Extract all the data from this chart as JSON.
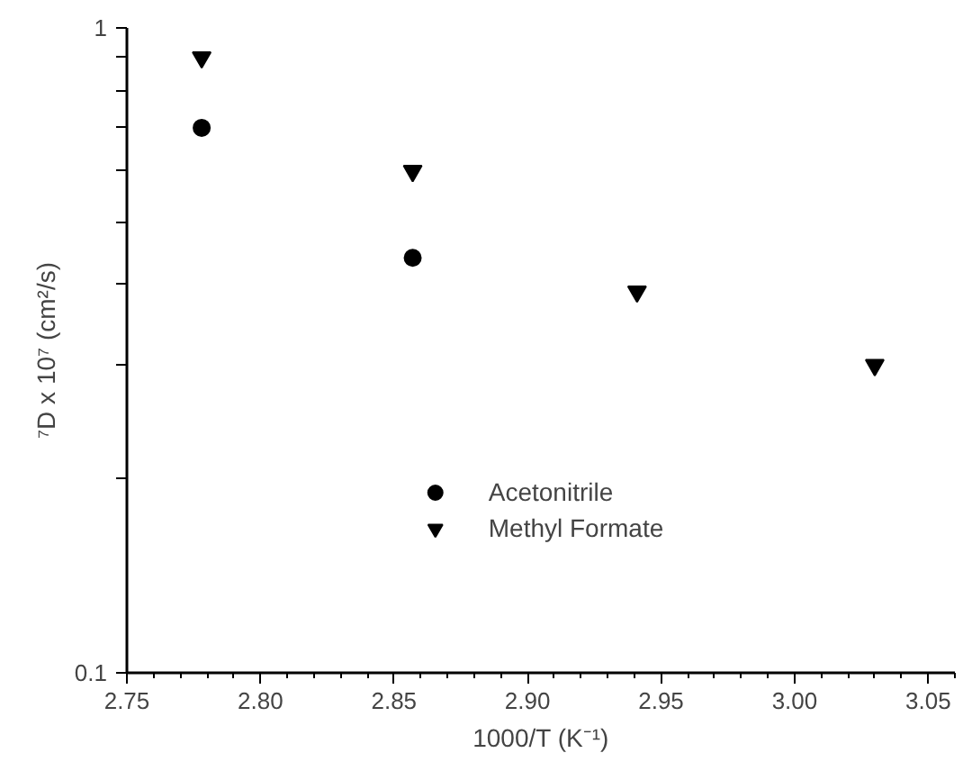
{
  "chart_data": {
    "type": "scatter",
    "xlabel": "1000/T (K⁻¹)",
    "ylabel": "⁷D x 10⁷ (cm²/s)",
    "xlim": [
      2.75,
      3.06
    ],
    "xticks": [
      {
        "value": 2.75,
        "label": "2.75"
      },
      {
        "value": 2.8,
        "label": "2.80"
      },
      {
        "value": 2.85,
        "label": "2.85"
      },
      {
        "value": 2.9,
        "label": "2.90"
      },
      {
        "value": 2.95,
        "label": "2.95"
      },
      {
        "value": 3.0,
        "label": "3.00"
      },
      {
        "value": 3.05,
        "label": "3.05"
      }
    ],
    "ylim": [
      0.1,
      1
    ],
    "yticks": [
      0.1,
      {
        "value": 0.2,
        "label": null
      },
      {
        "value": 0.3,
        "label": null
      },
      {
        "value": 0.4,
        "label": null
      },
      {
        "value": 0.5,
        "label": null
      },
      {
        "value": 0.6,
        "label": null
      },
      {
        "value": 0.7,
        "label": null
      },
      {
        "value": 0.8,
        "label": null
      },
      {
        "value": 0.9,
        "label": null
      },
      1
    ],
    "log": "y",
    "grid": false,
    "legend": "bottom",
    "series": [
      {
        "name": "Acetonitrile",
        "color": "#000000",
        "marker": "circle",
        "x": [
          2.778,
          2.857
        ],
        "values": [
          0.7,
          0.44
        ]
      },
      {
        "name": "Methyl Formate",
        "color": "#000000",
        "marker": "triangle",
        "x": [
          2.778,
          2.857,
          2.941,
          3.03
        ],
        "values": [
          0.9,
          0.6,
          0.39,
          0.3
        ]
      }
    ]
  }
}
